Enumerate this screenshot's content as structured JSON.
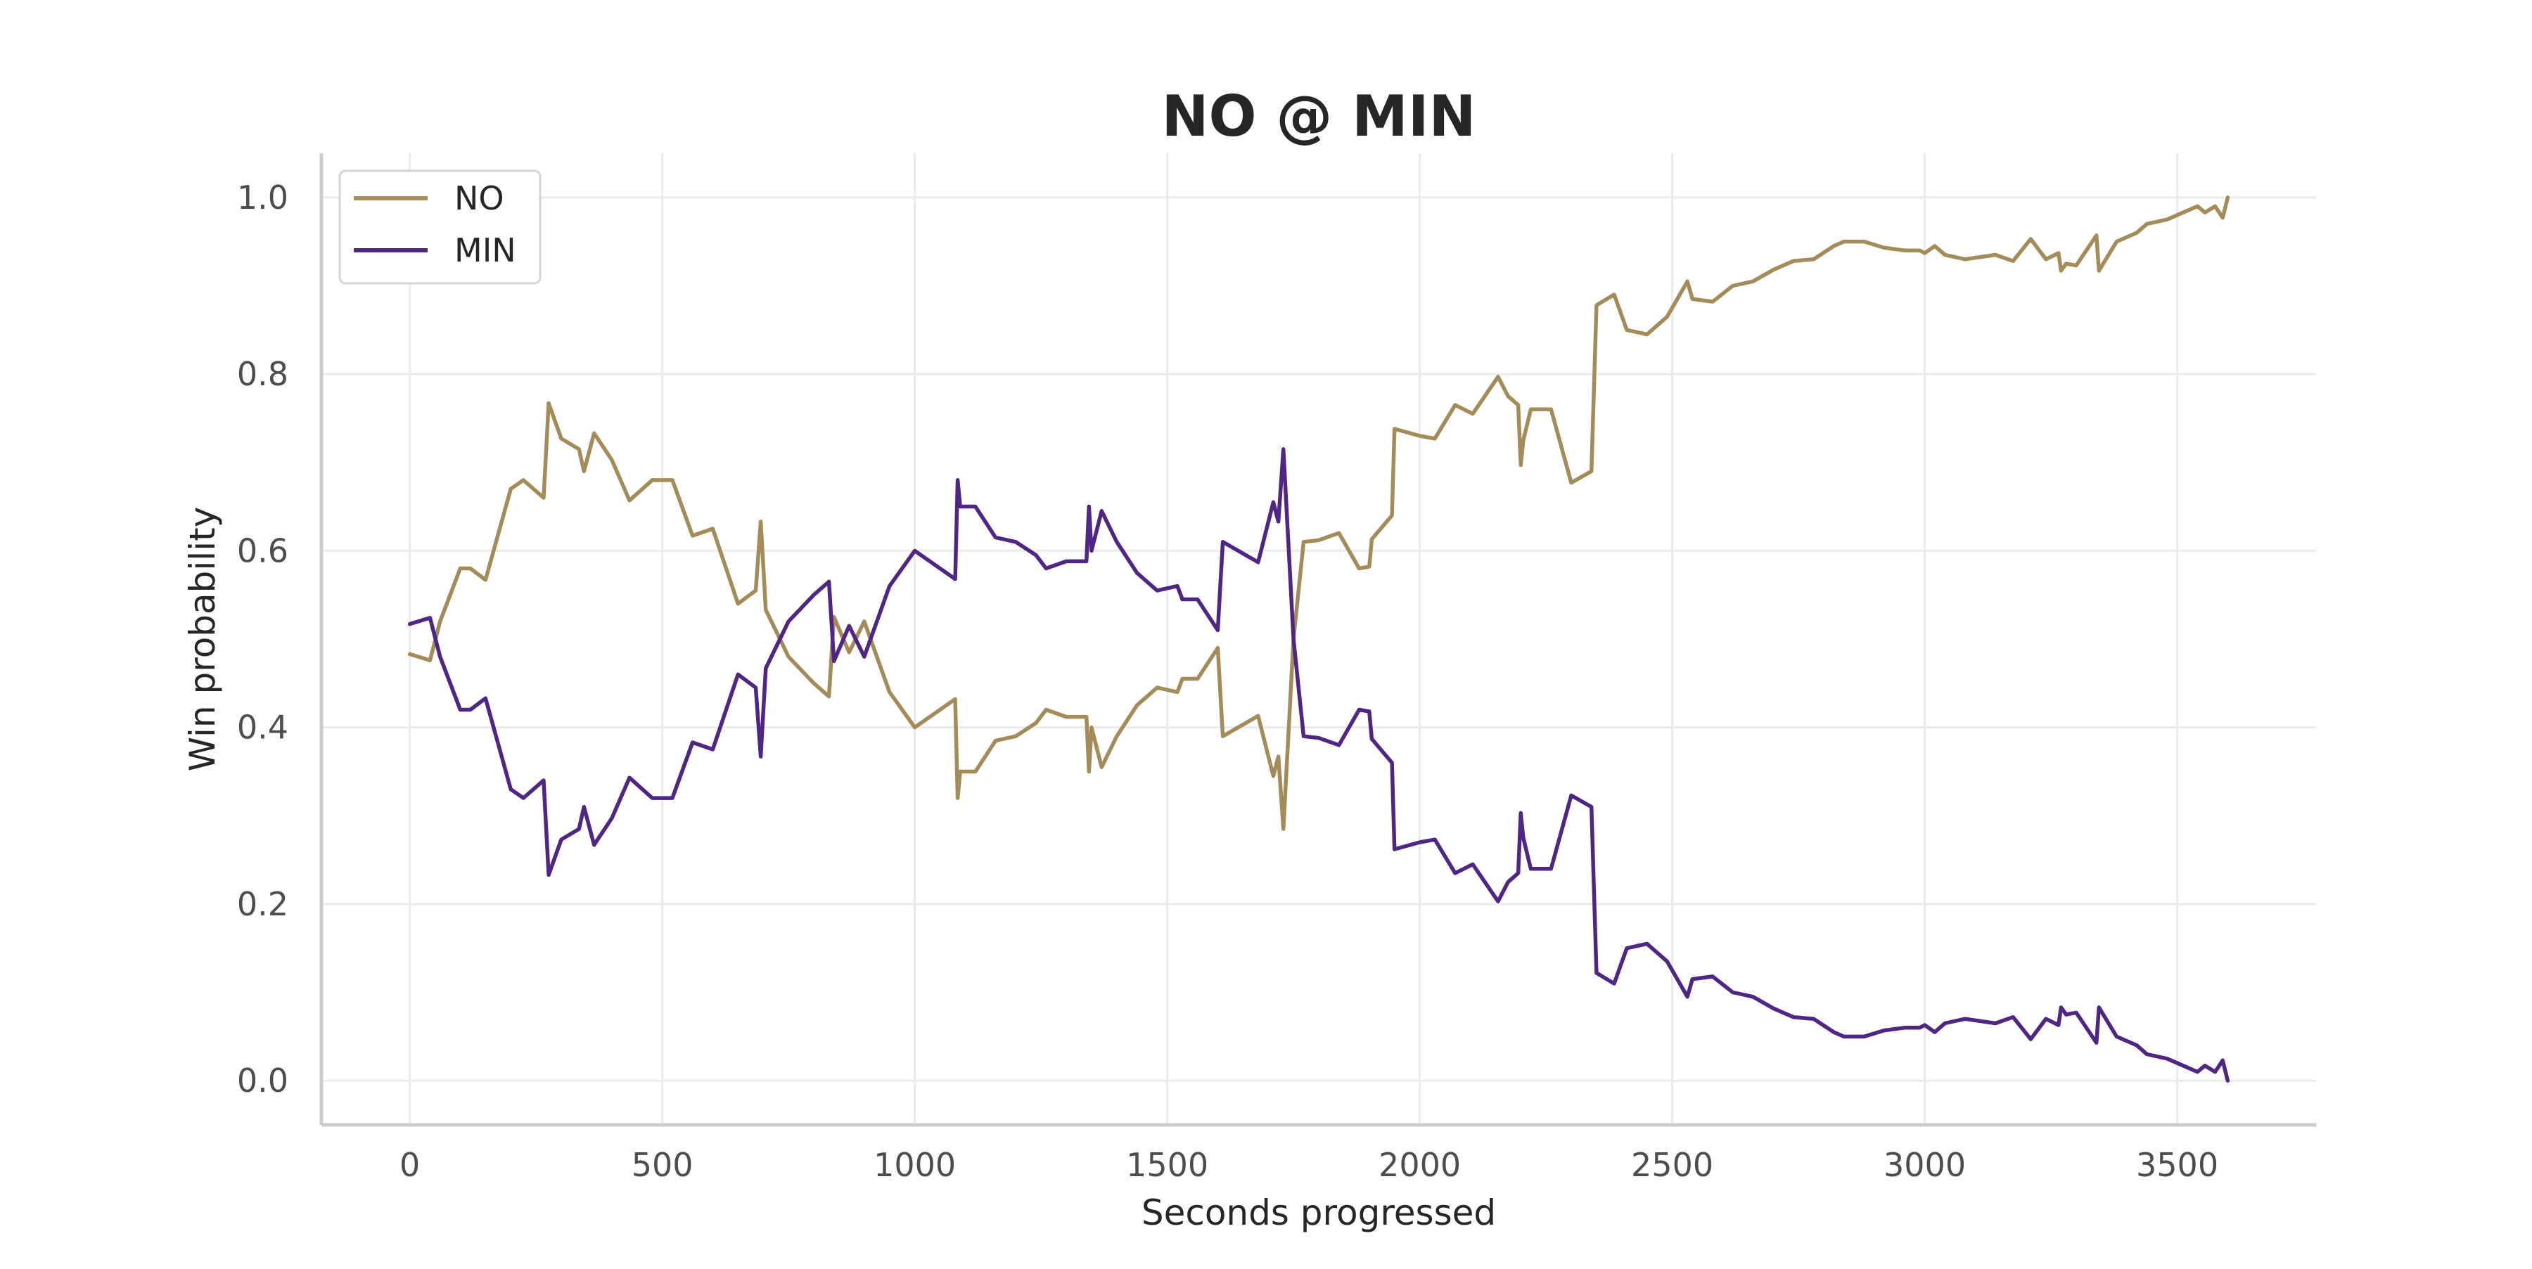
{
  "chart_data": {
    "type": "line",
    "title": "NO @ MIN",
    "xlabel": "Seconds progressed",
    "ylabel": "Win probability",
    "xlim": [
      -175,
      3775
    ],
    "ylim": [
      -0.05,
      1.05
    ],
    "xticks": [
      0,
      500,
      1000,
      1500,
      2000,
      2500,
      3000,
      3500
    ],
    "xtick_labels": [
      "0",
      "500",
      "1000",
      "1500",
      "2000",
      "2500",
      "3000",
      "3500"
    ],
    "yticks": [
      0.0,
      0.2,
      0.4,
      0.6,
      0.8,
      1.0
    ],
    "ytick_labels": [
      "0.0",
      "0.2",
      "0.4",
      "0.6",
      "0.8",
      "1.0"
    ],
    "grid": true,
    "legend_position": "top-left",
    "series": [
      {
        "name": "NO",
        "color": "#a48c5a",
        "points": [
          [
            0,
            0.483
          ],
          [
            40,
            0.476
          ],
          [
            60,
            0.52
          ],
          [
            100,
            0.58
          ],
          [
            120,
            0.58
          ],
          [
            150,
            0.567
          ],
          [
            200,
            0.67
          ],
          [
            225,
            0.68
          ],
          [
            265,
            0.66
          ],
          [
            275,
            0.767
          ],
          [
            300,
            0.727
          ],
          [
            335,
            0.715
          ],
          [
            345,
            0.69
          ],
          [
            365,
            0.733
          ],
          [
            400,
            0.703
          ],
          [
            435,
            0.657
          ],
          [
            480,
            0.68
          ],
          [
            520,
            0.68
          ],
          [
            560,
            0.617
          ],
          [
            600,
            0.625
          ],
          [
            650,
            0.54
          ],
          [
            685,
            0.555
          ],
          [
            695,
            0.633
          ],
          [
            705,
            0.533
          ],
          [
            750,
            0.48
          ],
          [
            800,
            0.45
          ],
          [
            830,
            0.435
          ],
          [
            840,
            0.525
          ],
          [
            870,
            0.485
          ],
          [
            900,
            0.52
          ],
          [
            950,
            0.44
          ],
          [
            1000,
            0.4
          ],
          [
            1050,
            0.42
          ],
          [
            1080,
            0.432
          ],
          [
            1085,
            0.32
          ],
          [
            1090,
            0.35
          ],
          [
            1120,
            0.35
          ],
          [
            1160,
            0.385
          ],
          [
            1200,
            0.39
          ],
          [
            1240,
            0.405
          ],
          [
            1260,
            0.42
          ],
          [
            1300,
            0.412
          ],
          [
            1340,
            0.412
          ],
          [
            1345,
            0.35
          ],
          [
            1350,
            0.4
          ],
          [
            1370,
            0.355
          ],
          [
            1400,
            0.39
          ],
          [
            1440,
            0.425
          ],
          [
            1480,
            0.445
          ],
          [
            1520,
            0.44
          ],
          [
            1530,
            0.455
          ],
          [
            1560,
            0.455
          ],
          [
            1600,
            0.49
          ],
          [
            1610,
            0.39
          ],
          [
            1680,
            0.413
          ],
          [
            1710,
            0.345
          ],
          [
            1720,
            0.367
          ],
          [
            1730,
            0.285
          ],
          [
            1750,
            0.5
          ],
          [
            1770,
            0.61
          ],
          [
            1800,
            0.612
          ],
          [
            1840,
            0.62
          ],
          [
            1880,
            0.58
          ],
          [
            1900,
            0.582
          ],
          [
            1905,
            0.613
          ],
          [
            1945,
            0.64
          ],
          [
            1950,
            0.738
          ],
          [
            2000,
            0.73
          ],
          [
            2030,
            0.727
          ],
          [
            2070,
            0.765
          ],
          [
            2105,
            0.755
          ],
          [
            2155,
            0.797
          ],
          [
            2175,
            0.775
          ],
          [
            2195,
            0.765
          ],
          [
            2200,
            0.697
          ],
          [
            2205,
            0.725
          ],
          [
            2220,
            0.76
          ],
          [
            2260,
            0.76
          ],
          [
            2300,
            0.677
          ],
          [
            2340,
            0.69
          ],
          [
            2350,
            0.878
          ],
          [
            2385,
            0.89
          ],
          [
            2410,
            0.85
          ],
          [
            2450,
            0.845
          ],
          [
            2490,
            0.865
          ],
          [
            2530,
            0.905
          ],
          [
            2540,
            0.885
          ],
          [
            2580,
            0.882
          ],
          [
            2620,
            0.9
          ],
          [
            2660,
            0.905
          ],
          [
            2700,
            0.918
          ],
          [
            2740,
            0.928
          ],
          [
            2780,
            0.93
          ],
          [
            2820,
            0.945
          ],
          [
            2840,
            0.95
          ],
          [
            2880,
            0.95
          ],
          [
            2920,
            0.943
          ],
          [
            2960,
            0.94
          ],
          [
            2990,
            0.94
          ],
          [
            3000,
            0.937
          ],
          [
            3020,
            0.945
          ],
          [
            3040,
            0.935
          ],
          [
            3080,
            0.93
          ],
          [
            3140,
            0.935
          ],
          [
            3175,
            0.928
          ],
          [
            3210,
            0.953
          ],
          [
            3240,
            0.93
          ],
          [
            3265,
            0.937
          ],
          [
            3270,
            0.917
          ],
          [
            3280,
            0.925
          ],
          [
            3300,
            0.923
          ],
          [
            3340,
            0.957
          ],
          [
            3345,
            0.917
          ],
          [
            3380,
            0.95
          ],
          [
            3420,
            0.96
          ],
          [
            3440,
            0.97
          ],
          [
            3480,
            0.975
          ],
          [
            3520,
            0.985
          ],
          [
            3540,
            0.99
          ],
          [
            3555,
            0.983
          ],
          [
            3575,
            0.99
          ],
          [
            3590,
            0.977
          ],
          [
            3600,
            1.0
          ]
        ]
      },
      {
        "name": "MIN",
        "color": "#4f2683",
        "points": [
          [
            0,
            0.517
          ],
          [
            40,
            0.524
          ],
          [
            60,
            0.48
          ],
          [
            100,
            0.42
          ],
          [
            120,
            0.42
          ],
          [
            150,
            0.433
          ],
          [
            200,
            0.33
          ],
          [
            225,
            0.32
          ],
          [
            265,
            0.34
          ],
          [
            275,
            0.233
          ],
          [
            300,
            0.273
          ],
          [
            335,
            0.285
          ],
          [
            345,
            0.31
          ],
          [
            365,
            0.267
          ],
          [
            400,
            0.297
          ],
          [
            435,
            0.343
          ],
          [
            480,
            0.32
          ],
          [
            520,
            0.32
          ],
          [
            560,
            0.383
          ],
          [
            600,
            0.375
          ],
          [
            650,
            0.46
          ],
          [
            685,
            0.445
          ],
          [
            695,
            0.367
          ],
          [
            705,
            0.467
          ],
          [
            750,
            0.52
          ],
          [
            800,
            0.55
          ],
          [
            830,
            0.565
          ],
          [
            840,
            0.475
          ],
          [
            870,
            0.515
          ],
          [
            900,
            0.48
          ],
          [
            950,
            0.56
          ],
          [
            1000,
            0.6
          ],
          [
            1050,
            0.58
          ],
          [
            1080,
            0.568
          ],
          [
            1085,
            0.68
          ],
          [
            1090,
            0.65
          ],
          [
            1120,
            0.65
          ],
          [
            1160,
            0.615
          ],
          [
            1200,
            0.61
          ],
          [
            1240,
            0.595
          ],
          [
            1260,
            0.58
          ],
          [
            1300,
            0.588
          ],
          [
            1340,
            0.588
          ],
          [
            1345,
            0.65
          ],
          [
            1350,
            0.6
          ],
          [
            1370,
            0.645
          ],
          [
            1400,
            0.61
          ],
          [
            1440,
            0.575
          ],
          [
            1480,
            0.555
          ],
          [
            1520,
            0.56
          ],
          [
            1530,
            0.545
          ],
          [
            1560,
            0.545
          ],
          [
            1600,
            0.51
          ],
          [
            1610,
            0.61
          ],
          [
            1680,
            0.587
          ],
          [
            1710,
            0.655
          ],
          [
            1720,
            0.633
          ],
          [
            1730,
            0.715
          ],
          [
            1750,
            0.5
          ],
          [
            1770,
            0.39
          ],
          [
            1800,
            0.388
          ],
          [
            1840,
            0.38
          ],
          [
            1880,
            0.42
          ],
          [
            1900,
            0.418
          ],
          [
            1905,
            0.387
          ],
          [
            1945,
            0.36
          ],
          [
            1950,
            0.262
          ],
          [
            2000,
            0.27
          ],
          [
            2030,
            0.273
          ],
          [
            2070,
            0.235
          ],
          [
            2105,
            0.245
          ],
          [
            2155,
            0.203
          ],
          [
            2175,
            0.225
          ],
          [
            2195,
            0.235
          ],
          [
            2200,
            0.303
          ],
          [
            2205,
            0.275
          ],
          [
            2220,
            0.24
          ],
          [
            2260,
            0.24
          ],
          [
            2300,
            0.323
          ],
          [
            2340,
            0.31
          ],
          [
            2350,
            0.122
          ],
          [
            2385,
            0.11
          ],
          [
            2410,
            0.15
          ],
          [
            2450,
            0.155
          ],
          [
            2490,
            0.135
          ],
          [
            2530,
            0.095
          ],
          [
            2540,
            0.115
          ],
          [
            2580,
            0.118
          ],
          [
            2620,
            0.1
          ],
          [
            2660,
            0.095
          ],
          [
            2700,
            0.082
          ],
          [
            2740,
            0.072
          ],
          [
            2780,
            0.07
          ],
          [
            2820,
            0.055
          ],
          [
            2840,
            0.05
          ],
          [
            2880,
            0.05
          ],
          [
            2920,
            0.057
          ],
          [
            2960,
            0.06
          ],
          [
            2990,
            0.06
          ],
          [
            3000,
            0.063
          ],
          [
            3020,
            0.055
          ],
          [
            3040,
            0.065
          ],
          [
            3080,
            0.07
          ],
          [
            3140,
            0.065
          ],
          [
            3175,
            0.072
          ],
          [
            3210,
            0.047
          ],
          [
            3240,
            0.07
          ],
          [
            3265,
            0.063
          ],
          [
            3270,
            0.083
          ],
          [
            3280,
            0.075
          ],
          [
            3300,
            0.077
          ],
          [
            3340,
            0.043
          ],
          [
            3345,
            0.083
          ],
          [
            3380,
            0.05
          ],
          [
            3420,
            0.04
          ],
          [
            3440,
            0.03
          ],
          [
            3480,
            0.025
          ],
          [
            3520,
            0.015
          ],
          [
            3540,
            0.01
          ],
          [
            3555,
            0.017
          ],
          [
            3575,
            0.01
          ],
          [
            3590,
            0.023
          ],
          [
            3600,
            0.0
          ]
        ]
      }
    ]
  }
}
